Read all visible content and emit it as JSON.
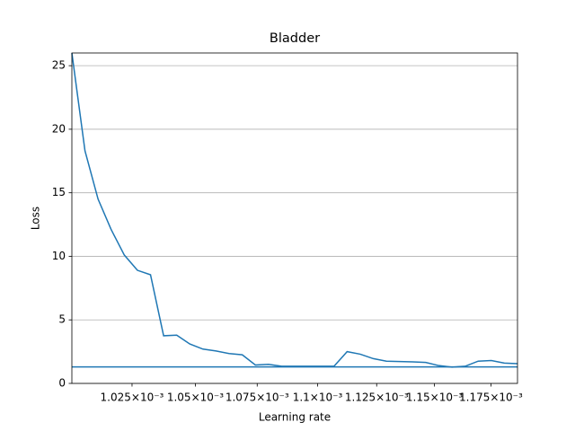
{
  "chart_data": {
    "type": "line",
    "title": "Bladder",
    "x_label": "Learning rate",
    "y_label": "Loss",
    "x_scale": "log",
    "x": [
      0.0010018,
      0.00100681,
      0.00101184,
      0.0010169,
      0.00102199,
      0.0010271,
      0.00103223,
      0.00103739,
      0.00104258,
      0.00104779,
      0.00105303,
      0.0010583,
      0.00106359,
      0.00106891,
      0.00107425,
      0.00107962,
      0.00108502,
      0.00109045,
      0.0010959,
      0.00110138,
      0.00110688,
      0.00111242,
      0.00111798,
      0.00112357,
      0.00112919,
      0.00113483,
      0.00114051,
      0.00114621,
      0.00115194,
      0.0011577,
      0.00116349,
      0.00116931,
      0.00117516,
      0.00118103,
      0.00118694
    ],
    "series": [
      {
        "color": "#1f77b4",
        "values": [
          26.0,
          18.3,
          14.5,
          12.1,
          10.1,
          8.9,
          8.55,
          3.75,
          3.8,
          3.1,
          2.7,
          2.55,
          2.35,
          2.25,
          1.45,
          1.5,
          1.35,
          1.35,
          1.35,
          1.35,
          1.35,
          2.5,
          2.3,
          1.95,
          1.75,
          1.72,
          1.7,
          1.65,
          1.4,
          1.28,
          1.35,
          1.75,
          1.8,
          1.6,
          1.55
        ]
      }
    ],
    "hline": {
      "y": 1.3,
      "color": "#1f77b4"
    },
    "xlim": [
      0.0010018,
      0.00118694
    ],
    "xticks": [
      {
        "value": 0.001025,
        "label": "1.025×10⁻³"
      },
      {
        "value": 0.00105,
        "label": "1.05×10⁻³"
      },
      {
        "value": 0.001075,
        "label": "1.075×10⁻³"
      },
      {
        "value": 0.0011,
        "label": "1.1×10⁻³"
      },
      {
        "value": 0.001125,
        "label": "1.125×10⁻³"
      },
      {
        "value": 0.00115,
        "label": "1.15×10⁻³"
      },
      {
        "value": 0.001175,
        "label": "1.175×10⁻³"
      }
    ],
    "ylim": [
      0,
      26
    ],
    "yticks": [
      0,
      5,
      10,
      15,
      20,
      25
    ],
    "grid": "y"
  }
}
